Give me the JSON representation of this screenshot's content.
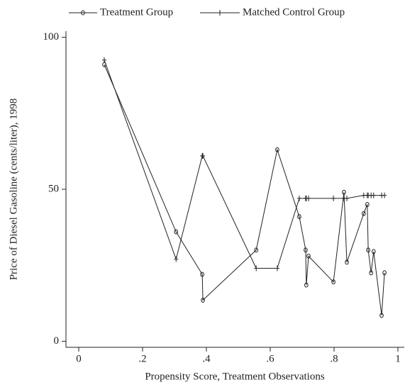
{
  "chart_data": {
    "type": "line",
    "x_label": "Propensity Score, Treatment Observations",
    "y_label": "Price of Diesel Gasoline (cents/liter), 1998",
    "x": [
      0.08,
      0.305,
      0.387,
      0.389,
      0.556,
      0.622,
      0.691,
      0.711,
      0.713,
      0.72,
      0.798,
      0.831,
      0.84,
      0.893,
      0.904,
      0.907,
      0.916,
      0.924,
      0.949,
      0.958
    ],
    "series": [
      {
        "name": "Treatment Group",
        "color": "#222222",
        "marker": "circle",
        "values": [
          91,
          36,
          22,
          13.5,
          30,
          63,
          41,
          30,
          18.5,
          28,
          19.5,
          49,
          26,
          42,
          45,
          30,
          22.5,
          29.5,
          8.5,
          22.5
        ]
      },
      {
        "name": "Matched Control Group",
        "color": "#222222",
        "marker": "plus",
        "values": [
          92.5,
          27,
          61,
          61,
          24,
          24,
          47,
          47,
          47,
          47,
          47,
          47,
          47,
          48,
          48,
          48,
          48,
          48,
          48,
          48
        ]
      }
    ],
    "xlim": [
      -0.04,
      1.02
    ],
    "xticks": [
      0,
      {
        "value": 0.2,
        "label": ".2"
      },
      {
        "value": 0.4,
        "label": ".4"
      },
      {
        "value": 0.6,
        "label": ".6"
      },
      {
        "value": 0.8,
        "label": ".8"
      },
      1
    ],
    "ylim": [
      -2,
      102
    ],
    "yticks": [
      0,
      50,
      100
    ],
    "legend": "top"
  }
}
